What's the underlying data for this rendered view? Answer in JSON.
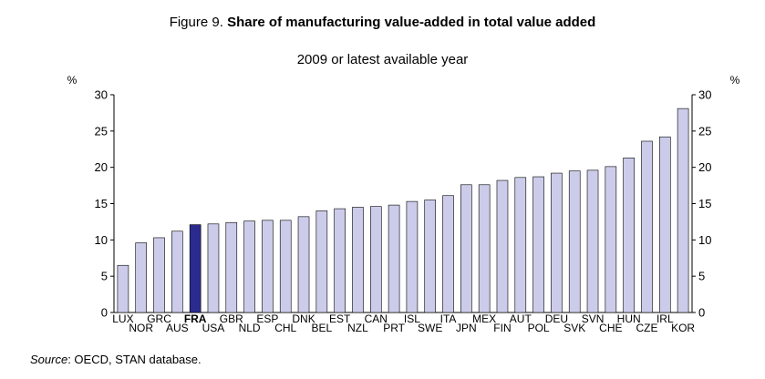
{
  "header": {
    "figure_label": "Figure 9.",
    "title": "Share of manufacturing value-added in total value added",
    "subtitle": "2009 or latest available year"
  },
  "footer": {
    "source_label": "Source",
    "source_text": ": OECD, STAN database."
  },
  "colors": {
    "bar_fill": "#ccccea",
    "highlight_fill": "#2b2b8f",
    "bar_stroke": "#000000"
  },
  "chart_data": {
    "type": "bar",
    "title": "Share of manufacturing value-added in total value added",
    "subtitle": "2009 or latest available year",
    "ylabel_left": "%",
    "ylabel_right": "%",
    "ylim": [
      0,
      30
    ],
    "yticks": [
      0,
      5,
      10,
      15,
      20,
      25,
      30
    ],
    "grid": false,
    "highlight": "FRA",
    "categories": [
      "LUX",
      "NOR",
      "GRC",
      "AUS",
      "FRA",
      "USA",
      "GBR",
      "NLD",
      "ESP",
      "CHL",
      "DNK",
      "BEL",
      "EST",
      "NZL",
      "CAN",
      "PRT",
      "ISL",
      "SWE",
      "ITA",
      "JPN",
      "MEX",
      "FIN",
      "AUT",
      "POL",
      "DEU",
      "SVK",
      "SVN",
      "CHE",
      "HUN",
      "CZE",
      "IRL",
      "KOR"
    ],
    "values": [
      6.5,
      9.6,
      10.3,
      11.2,
      12.1,
      12.2,
      12.4,
      12.6,
      12.7,
      12.7,
      13.2,
      14.0,
      14.3,
      14.5,
      14.6,
      14.8,
      15.3,
      15.5,
      16.1,
      17.6,
      17.6,
      18.2,
      18.6,
      18.7,
      19.2,
      19.5,
      19.6,
      20.1,
      21.3,
      23.6,
      24.2,
      28.1
    ]
  }
}
